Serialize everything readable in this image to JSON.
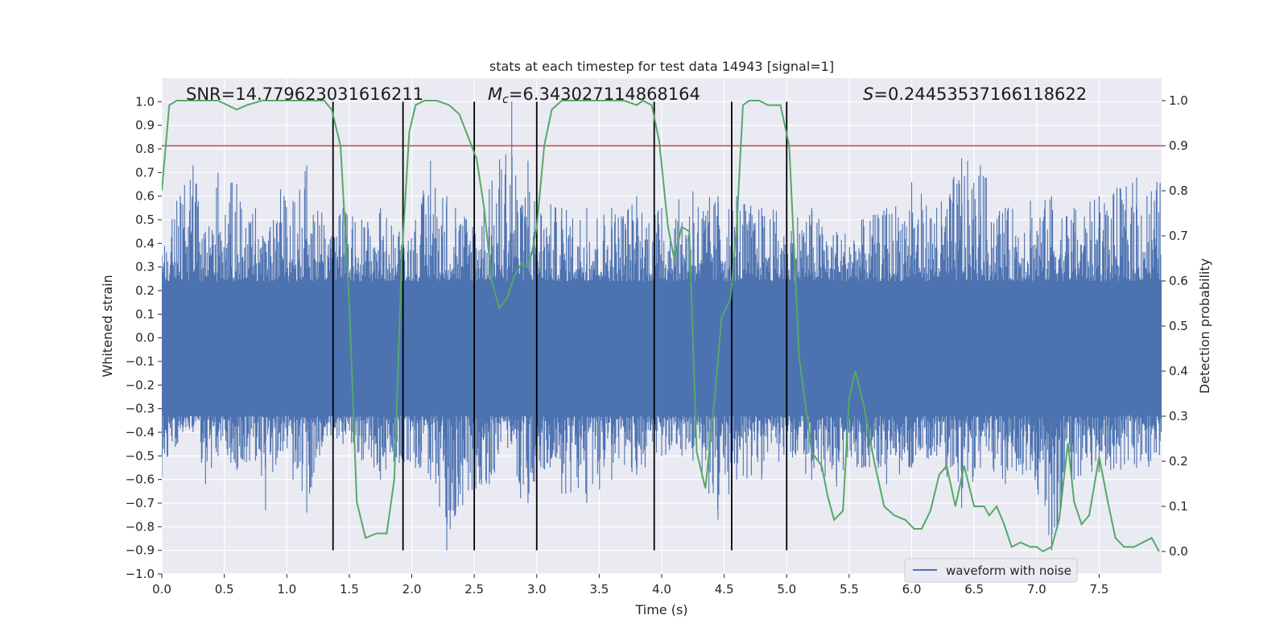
{
  "chart_data": {
    "type": "line",
    "title": "stats at each timestep for test data 14943 [signal=1]",
    "xlabel": "Time (s)",
    "ylabel_left": "Whitened strain",
    "ylabel_right": "Detection probability",
    "xlim": [
      0.0,
      8.0
    ],
    "ylim_left": [
      -1.0,
      1.1
    ],
    "ylim_right": [
      -0.05,
      1.05
    ],
    "x_ticks": [
      0.0,
      0.5,
      1.0,
      1.5,
      2.0,
      2.5,
      3.0,
      3.5,
      4.0,
      4.5,
      5.0,
      5.5,
      6.0,
      6.5,
      7.0,
      7.5
    ],
    "x_tick_labels": [
      "0.0",
      "0.5",
      "1.0",
      "1.5",
      "2.0",
      "2.5",
      "3.0",
      "3.5",
      "4.0",
      "4.5",
      "5.0",
      "5.5",
      "6.0",
      "6.5",
      "7.0",
      "7.5"
    ],
    "y_left_ticks": [
      -1.0,
      -0.9,
      -0.8,
      -0.7,
      -0.6,
      -0.5,
      -0.4,
      -0.3,
      -0.2,
      -0.1,
      0.0,
      0.1,
      0.2,
      0.3,
      0.4,
      0.5,
      0.6,
      0.7,
      0.8,
      0.9,
      1.0
    ],
    "y_left_tick_labels": [
      "−1.0",
      "−0.9",
      "−0.8",
      "−0.7",
      "−0.6",
      "−0.5",
      "−0.4",
      "−0.3",
      "−0.2",
      "−0.1",
      "0.0",
      "0.1",
      "0.2",
      "0.3",
      "0.4",
      "0.5",
      "0.6",
      "0.7",
      "0.8",
      "0.9",
      "1.0"
    ],
    "y_right_ticks": [
      0.0,
      0.1,
      0.2,
      0.3,
      0.4,
      0.5,
      0.6,
      0.7,
      0.8,
      0.9,
      1.0
    ],
    "y_right_tick_labels": [
      "0.0",
      "0.1",
      "0.2",
      "0.3",
      "0.4",
      "0.5",
      "0.6",
      "0.7",
      "0.8",
      "0.9",
      "1.0"
    ],
    "threshold": 0.9,
    "event_markers": [
      1.37,
      1.93,
      2.5,
      3.0,
      3.94,
      4.56,
      5.0
    ],
    "event_marker_range": [
      -0.9,
      1.0
    ],
    "waveform": {
      "name": "waveform with noise",
      "color": "#4c72b0",
      "dense_band": [
        -0.33,
        0.24
      ],
      "peaks": [
        {
          "t": 0.0,
          "hi": 0.35,
          "lo": -0.59
        },
        {
          "t": 0.12,
          "hi": 0.58,
          "lo": -0.45
        },
        {
          "t": 0.25,
          "hi": 0.73,
          "lo": -0.4
        },
        {
          "t": 0.35,
          "hi": 0.45,
          "lo": -0.62
        },
        {
          "t": 0.45,
          "hi": 0.7,
          "lo": -0.5
        },
        {
          "t": 0.6,
          "hi": 0.65,
          "lo": -0.56
        },
        {
          "t": 0.75,
          "hi": 0.55,
          "lo": -0.52
        },
        {
          "t": 0.83,
          "hi": 0.4,
          "lo": -0.73
        },
        {
          "t": 0.95,
          "hi": 0.63,
          "lo": -0.48
        },
        {
          "t": 1.05,
          "hi": 0.58,
          "lo": -0.6
        },
        {
          "t": 1.16,
          "hi": 0.73,
          "lo": -0.74
        },
        {
          "t": 1.28,
          "hi": 0.53,
          "lo": -0.46
        },
        {
          "t": 1.45,
          "hi": 0.55,
          "lo": -0.45
        },
        {
          "t": 1.6,
          "hi": 0.5,
          "lo": -0.52
        },
        {
          "t": 1.75,
          "hi": 0.55,
          "lo": -0.6
        },
        {
          "t": 1.9,
          "hi": 0.45,
          "lo": -0.53
        },
        {
          "t": 2.03,
          "hi": 0.5,
          "lo": -0.55
        },
        {
          "t": 2.15,
          "hi": 0.75,
          "lo": -0.6
        },
        {
          "t": 2.28,
          "hi": 0.6,
          "lo": -0.9
        },
        {
          "t": 2.35,
          "hi": 0.55,
          "lo": -0.75
        },
        {
          "t": 2.5,
          "hi": 0.55,
          "lo": -0.65
        },
        {
          "t": 2.62,
          "hi": 0.63,
          "lo": -0.62
        },
        {
          "t": 2.8,
          "hi": 1.0,
          "lo": -0.45
        },
        {
          "t": 2.87,
          "hi": 0.55,
          "lo": -0.68
        },
        {
          "t": 2.93,
          "hi": 0.75,
          "lo": -0.7
        },
        {
          "t": 3.0,
          "hi": 0.6,
          "lo": -0.6
        },
        {
          "t": 3.2,
          "hi": 0.55,
          "lo": -0.66
        },
        {
          "t": 3.4,
          "hi": 0.55,
          "lo": -0.7
        },
        {
          "t": 3.6,
          "hi": 0.55,
          "lo": -0.6
        },
        {
          "t": 3.8,
          "hi": 0.6,
          "lo": -0.58
        },
        {
          "t": 4.0,
          "hi": 0.55,
          "lo": -0.5
        },
        {
          "t": 4.25,
          "hi": 0.62,
          "lo": -0.52
        },
        {
          "t": 4.45,
          "hi": 0.6,
          "lo": -0.77
        },
        {
          "t": 4.6,
          "hi": 0.6,
          "lo": -0.6
        },
        {
          "t": 4.8,
          "hi": 0.55,
          "lo": -0.6
        },
        {
          "t": 5.0,
          "hi": 0.55,
          "lo": -0.5
        },
        {
          "t": 5.2,
          "hi": 0.55,
          "lo": -0.6
        },
        {
          "t": 5.4,
          "hi": 0.45,
          "lo": -0.63
        },
        {
          "t": 5.6,
          "hi": 0.5,
          "lo": -0.55
        },
        {
          "t": 5.8,
          "hi": 0.55,
          "lo": -0.62
        },
        {
          "t": 6.0,
          "hi": 0.66,
          "lo": -0.55
        },
        {
          "t": 6.2,
          "hi": 0.55,
          "lo": -0.5
        },
        {
          "t": 6.4,
          "hi": 0.76,
          "lo": -0.72
        },
        {
          "t": 6.55,
          "hi": 0.73,
          "lo": -0.55
        },
        {
          "t": 6.75,
          "hi": 0.55,
          "lo": -0.62
        },
        {
          "t": 6.95,
          "hi": 0.58,
          "lo": -0.56
        },
        {
          "t": 7.12,
          "hi": 0.6,
          "lo": -0.9
        },
        {
          "t": 7.3,
          "hi": 0.55,
          "lo": -0.6
        },
        {
          "t": 7.5,
          "hi": 0.6,
          "lo": -0.57
        },
        {
          "t": 7.8,
          "hi": 0.68,
          "lo": -0.55
        }
      ]
    },
    "probability": {
      "color": "#55a868",
      "t": [
        0.0,
        0.06,
        0.12,
        0.2,
        0.3,
        0.45,
        0.6,
        0.68,
        0.8,
        0.9,
        1.0,
        1.1,
        1.2,
        1.3,
        1.36,
        1.43,
        1.5,
        1.56,
        1.63,
        1.72,
        1.8,
        1.86,
        1.92,
        1.98,
        2.03,
        2.1,
        2.2,
        2.3,
        2.38,
        2.45,
        2.52,
        2.58,
        2.64,
        2.7,
        2.76,
        2.82,
        2.88,
        2.92,
        2.96,
        3.0,
        3.06,
        3.12,
        3.2,
        3.3,
        3.4,
        3.5,
        3.6,
        3.7,
        3.8,
        3.85,
        3.92,
        3.98,
        4.05,
        4.1,
        4.16,
        4.22,
        4.28,
        4.35,
        4.42,
        4.48,
        4.55,
        4.6,
        4.65,
        4.7,
        4.78,
        4.85,
        4.95,
        5.02,
        5.1,
        5.2,
        5.28,
        5.33,
        5.38,
        5.45,
        5.5,
        5.55,
        5.62,
        5.7,
        5.78,
        5.86,
        5.95,
        6.02,
        6.08,
        6.15,
        6.22,
        6.28,
        6.35,
        6.42,
        6.5,
        6.58,
        6.62,
        6.68,
        6.74,
        6.8,
        6.87,
        6.95,
        7.0,
        7.05,
        7.12,
        7.18,
        7.25,
        7.3,
        7.36,
        7.42,
        7.5,
        7.57,
        7.63,
        7.7,
        7.78,
        7.85,
        7.92,
        7.98
      ],
      "p": [
        0.8,
        0.99,
        1.0,
        1.0,
        1.0,
        1.0,
        0.98,
        0.99,
        1.0,
        1.0,
        1.0,
        1.0,
        1.0,
        1.0,
        0.98,
        0.9,
        0.55,
        0.11,
        0.03,
        0.04,
        0.04,
        0.16,
        0.65,
        0.93,
        0.99,
        1.0,
        1.0,
        0.99,
        0.97,
        0.92,
        0.87,
        0.76,
        0.6,
        0.54,
        0.56,
        0.61,
        0.64,
        0.63,
        0.66,
        0.72,
        0.9,
        0.98,
        1.0,
        1.0,
        1.0,
        1.0,
        1.0,
        1.0,
        0.99,
        1.0,
        0.99,
        0.91,
        0.72,
        0.65,
        0.72,
        0.71,
        0.22,
        0.14,
        0.33,
        0.52,
        0.56,
        0.72,
        0.99,
        1.0,
        1.0,
        0.99,
        0.99,
        0.9,
        0.43,
        0.22,
        0.19,
        0.12,
        0.07,
        0.09,
        0.34,
        0.4,
        0.32,
        0.2,
        0.1,
        0.08,
        0.07,
        0.05,
        0.05,
        0.09,
        0.17,
        0.19,
        0.1,
        0.19,
        0.1,
        0.1,
        0.08,
        0.1,
        0.06,
        0.01,
        0.02,
        0.01,
        0.01,
        0.0,
        0.01,
        0.07,
        0.24,
        0.11,
        0.06,
        0.08,
        0.21,
        0.11,
        0.03,
        0.01,
        0.01,
        0.02,
        0.03,
        0.0
      ]
    },
    "annotations": {
      "snr": "SNR=14.779623031616211",
      "mc_symbol": "M",
      "mc_sub": "c",
      "mc_value": "=6.343027114868164",
      "s_symbol": "S",
      "s_value": "=0.24453537166118622"
    },
    "legend": {
      "label": "waveform with noise",
      "position": "lower-right"
    },
    "threshold_color": "#c44e52",
    "marker_color": "#000000",
    "grid": true
  }
}
